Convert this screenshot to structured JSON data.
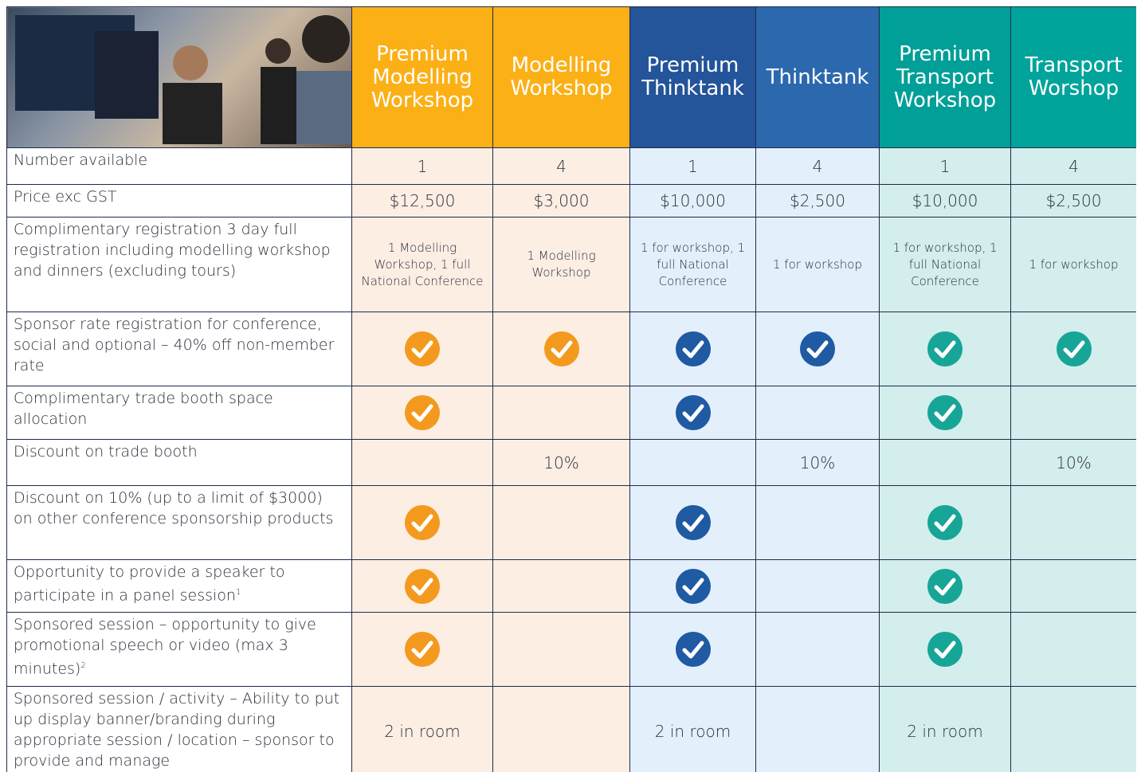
{
  "table": {
    "columns": [
      {
        "title": "Premium Modelling Workshop",
        "color": "#fbb016",
        "tint": "#fdeee4",
        "check": "#f39a1e"
      },
      {
        "title": "Modelling Workshop",
        "color": "#fbb016",
        "tint": "#fdeee4",
        "check": "#f39a1e"
      },
      {
        "title": "Premium Thinktank",
        "color": "#245499",
        "tint": "#e3f0fb",
        "check": "#1f5aa3"
      },
      {
        "title": "Thinktank",
        "color": "#2c68ad",
        "tint": "#e3f0fb",
        "check": "#1f5aa3"
      },
      {
        "title": "Premium Transport Workshop",
        "color": "#009f97",
        "tint": "#d3eeec",
        "check": "#17a597"
      },
      {
        "title": "Transport Worshop",
        "color": "#00a49b",
        "tint": "#d3eeec",
        "check": "#17a597"
      }
    ],
    "rows": [
      {
        "label": "Number available",
        "cells": [
          "1",
          "4",
          "1",
          "4",
          "1",
          "4"
        ]
      },
      {
        "label": "Price exc GST",
        "cells": [
          "$12,500",
          "$3,000",
          "$10,000",
          "$2,500",
          "$10,000",
          "$2,500"
        ]
      },
      {
        "label": "Complimentary registration 3 day full registration including modelling workshop and dinners (excluding tours)",
        "cells": [
          "1 Modelling Workshop, 1 full National Conference",
          "1 Modelling Workshop",
          "1 for workshop, 1 full National Conference",
          "1 for workshop",
          "1 for workshop, 1 full National Conference",
          "1 for workshop"
        ]
      },
      {
        "label": "Sponsor rate registration for conference, social and optional – 40% off non-member rate",
        "cells": [
          true,
          true,
          true,
          true,
          true,
          true
        ]
      },
      {
        "label": "Complimentary trade booth space allocation",
        "cells": [
          true,
          null,
          true,
          null,
          true,
          null
        ]
      },
      {
        "label": "Discount on trade booth",
        "cells": [
          null,
          "10%",
          null,
          "10%",
          null,
          "10%"
        ]
      },
      {
        "label": "Discount on 10% (up to a limit of $3000) on other conference sponsorship products",
        "cells": [
          true,
          null,
          true,
          null,
          true,
          null
        ]
      },
      {
        "label": "Opportunity to provide a speaker to participate in a panel session",
        "sup": "1",
        "cells": [
          true,
          null,
          true,
          null,
          true,
          null
        ]
      },
      {
        "label": "Sponsored session – opportunity to give promotional speech or video (max 3 minutes)",
        "sup": "2",
        "cells": [
          true,
          null,
          true,
          null,
          true,
          null
        ]
      },
      {
        "label": "Sponsored session / activity – Ability to put up display banner/branding during appropriate session / location – sponsor to provide and manage",
        "cells": [
          "2 in room",
          null,
          "2 in room",
          null,
          "2 in room",
          null
        ]
      }
    ]
  }
}
